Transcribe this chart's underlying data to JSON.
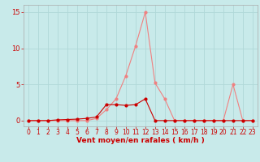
{
  "x": [
    0,
    1,
    2,
    3,
    4,
    5,
    6,
    7,
    8,
    9,
    10,
    11,
    12,
    13,
    14,
    15,
    16,
    17,
    18,
    19,
    20,
    21,
    22,
    23
  ],
  "line1_y": [
    0,
    0,
    0,
    0,
    0,
    0,
    0,
    0.3,
    1.5,
    3.0,
    6.2,
    10.3,
    15.0,
    5.2,
    3.0,
    0,
    0,
    0,
    0,
    0,
    0,
    5.0,
    0,
    0
  ],
  "line2_y": [
    0,
    0,
    0,
    0.1,
    0.15,
    0.2,
    0.3,
    0.5,
    2.2,
    2.2,
    2.1,
    2.2,
    3.0,
    0,
    0,
    0,
    0,
    0,
    0,
    0,
    0,
    0,
    0,
    0
  ],
  "line1_color": "#f08080",
  "line2_color": "#cc0000",
  "bg_color": "#c8eaea",
  "grid_color": "#b0d8d8",
  "xlabel": "Vent moyen/en rafales ( km/h )",
  "xlim": [
    -0.5,
    23.5
  ],
  "ylim": [
    -0.8,
    16
  ],
  "yticks": [
    0,
    5,
    10,
    15
  ],
  "xticks": [
    0,
    1,
    2,
    3,
    4,
    5,
    6,
    7,
    8,
    9,
    10,
    11,
    12,
    13,
    14,
    15,
    16,
    17,
    18,
    19,
    20,
    21,
    22,
    23
  ],
  "marker": "o",
  "markersize": 2.0,
  "linewidth": 0.8,
  "tick_color": "#cc0000",
  "label_fontsize": 5.5,
  "xlabel_fontsize": 6.5
}
